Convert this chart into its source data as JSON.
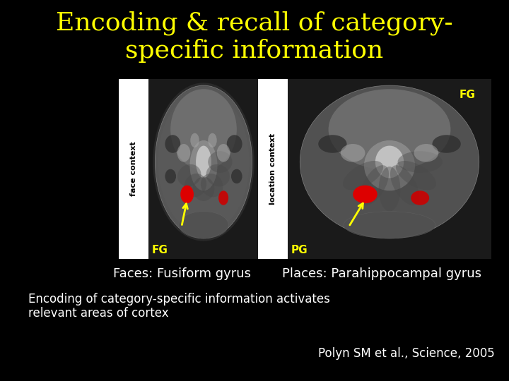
{
  "background_color": "#000000",
  "title_line1": "Encoding & recall of category-",
  "title_line2": "specific information",
  "title_color": "#FFFF00",
  "title_fontsize": 26,
  "label_left": "Faces: Fusiform gyrus",
  "label_right": "Places: Parahippocampal gyrus",
  "label_color": "#FFFFFF",
  "label_fontsize": 13,
  "body_line1": "Encoding of category-specific information activates",
  "body_line2": "relevant areas of cortex",
  "body_color": "#FFFFFF",
  "body_fontsize": 12,
  "citation": "Polyn SM et al., Science, 2005",
  "citation_color": "#FFFFFF",
  "citation_fontsize": 12,
  "fig_width": 7.2,
  "fig_height": 5.4,
  "dpi": 100
}
